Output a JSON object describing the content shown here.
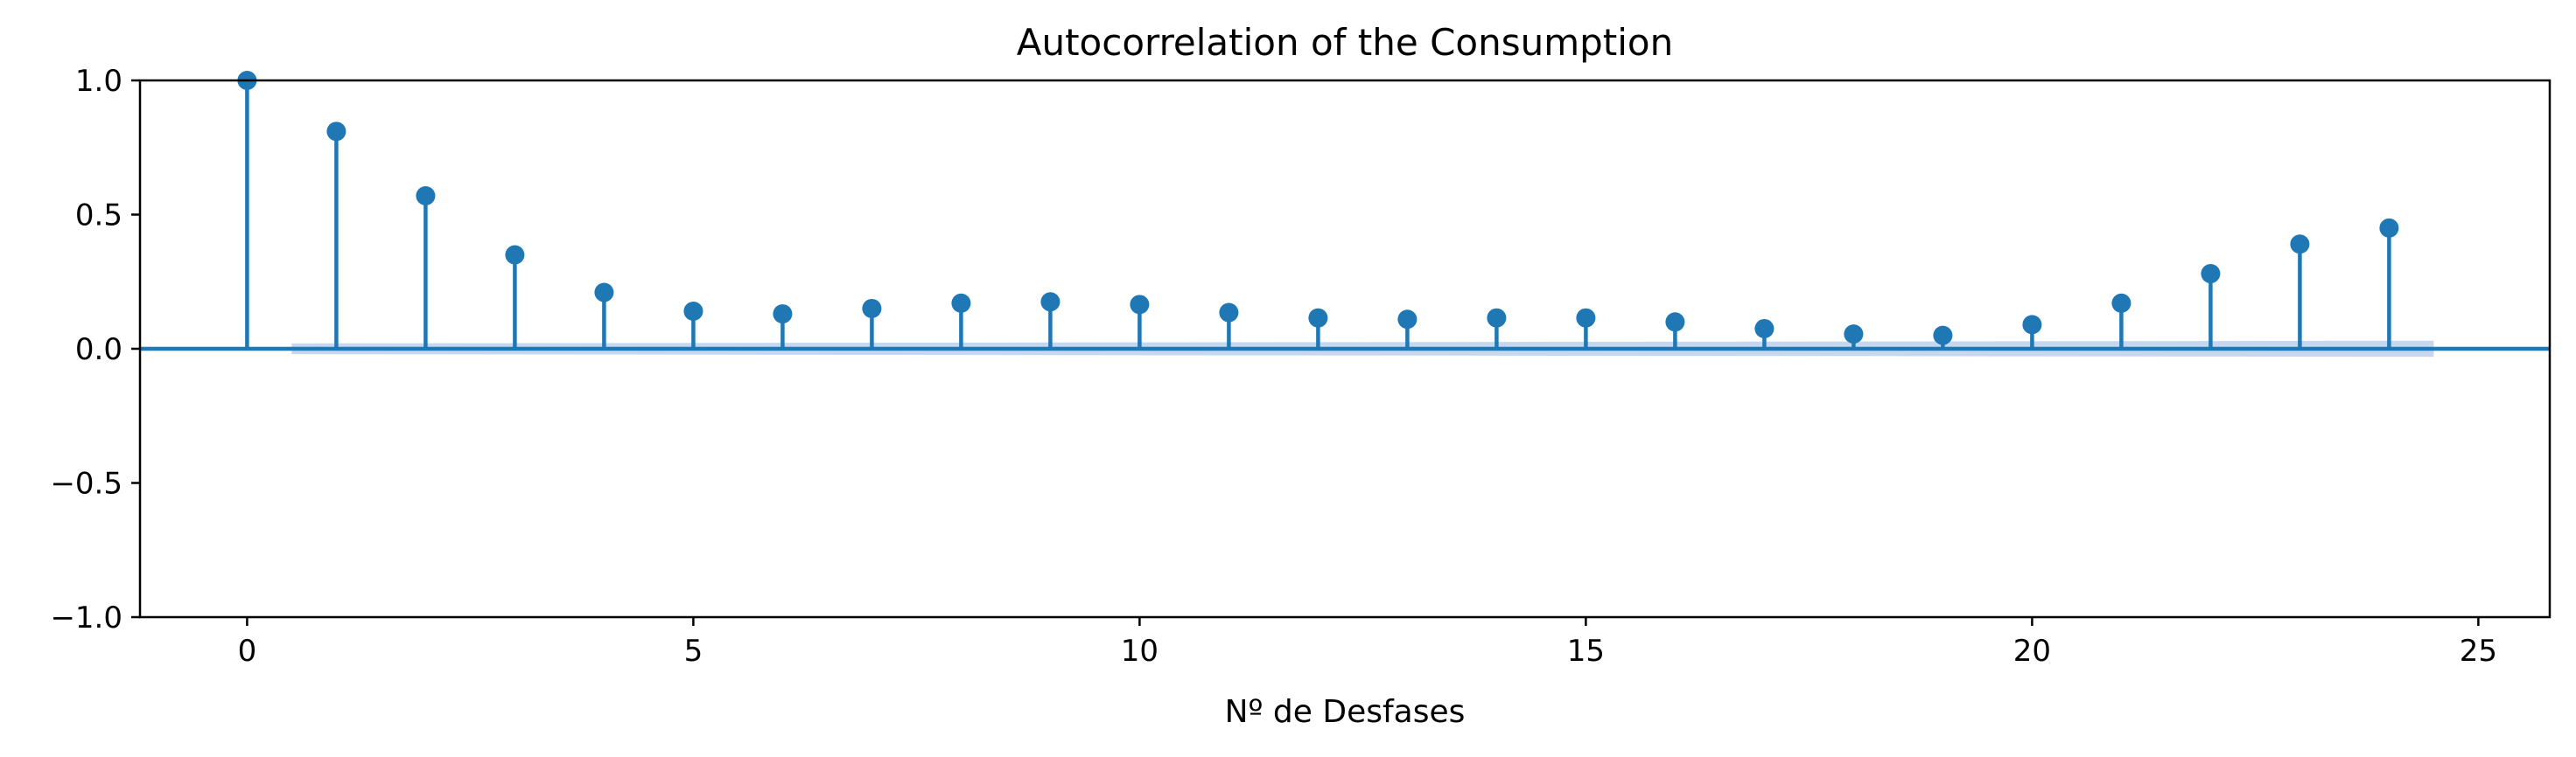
{
  "chart_data": {
    "type": "stem",
    "title": "Autocorrelation of the Consumption",
    "xlabel": "Nº de Desfases",
    "ylabel": "",
    "xlim": [
      -1.2,
      25.8
    ],
    "ylim": [
      -1.0,
      1.0
    ],
    "xticks": [
      0,
      5,
      10,
      15,
      20,
      25
    ],
    "xtick_labels": [
      "0",
      "5",
      "10",
      "15",
      "20",
      "25"
    ],
    "yticks": [
      -1.0,
      -0.5,
      0.0,
      0.5,
      1.0
    ],
    "ytick_labels": [
      "−1.0",
      "−0.5",
      "0.0",
      "0.5",
      "1.0"
    ],
    "grid": false,
    "series": [
      {
        "x": [
          0,
          1,
          2,
          3,
          4,
          5,
          6,
          7,
          8,
          9,
          10,
          11,
          12,
          13,
          14,
          15,
          16,
          17,
          18,
          19,
          20,
          21,
          22,
          23,
          24
        ],
        "values": [
          1.0,
          0.81,
          0.57,
          0.35,
          0.21,
          0.14,
          0.13,
          0.15,
          0.17,
          0.175,
          0.165,
          0.135,
          0.115,
          0.11,
          0.115,
          0.115,
          0.1,
          0.075,
          0.055,
          0.05,
          0.09,
          0.17,
          0.28,
          0.39,
          0.45
        ],
        "color": "#1f77b4"
      }
    ],
    "confidence_band": {
      "x": [
        0.5,
        24.5
      ],
      "upper": [
        0.02,
        0.03
      ],
      "lower": [
        -0.02,
        -0.03
      ],
      "color": "#aec7e8"
    }
  }
}
